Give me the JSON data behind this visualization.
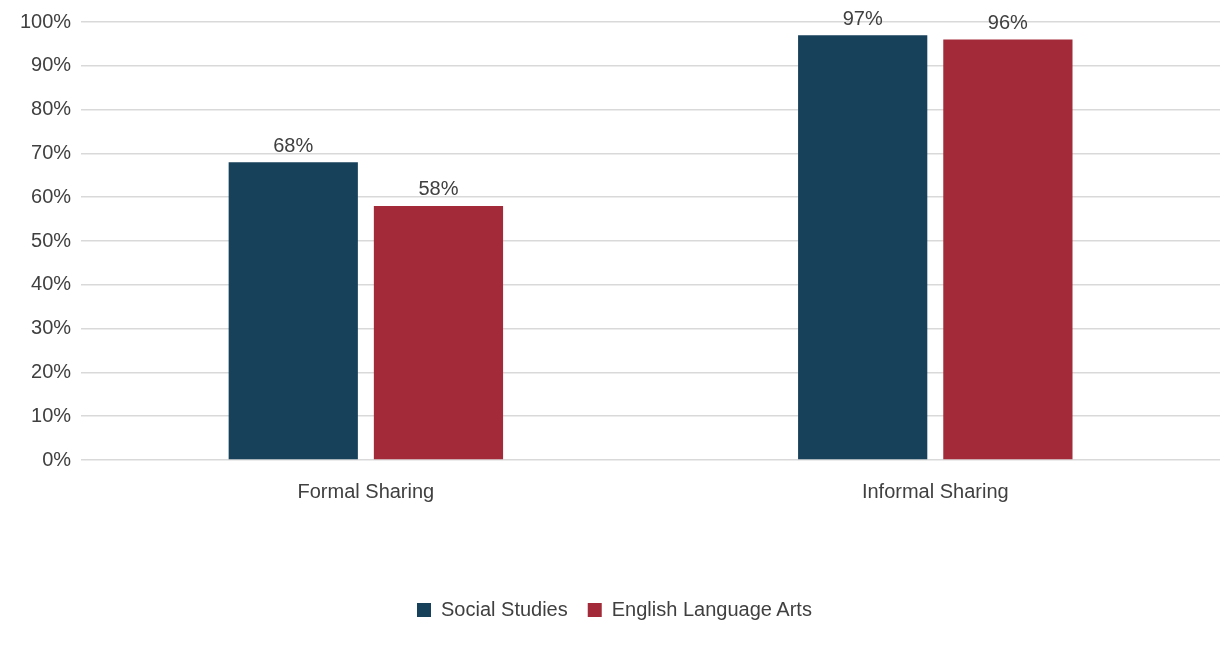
{
  "chart_data": {
    "type": "bar",
    "categories": [
      "Formal Sharing",
      "Informal Sharing"
    ],
    "series": [
      {
        "name": "Social Studies",
        "color": "#17415a",
        "values": [
          68,
          97
        ],
        "value_labels": [
          "68%",
          "97%"
        ]
      },
      {
        "name": "English Language Arts",
        "color": "#a32a38",
        "values": [
          58,
          96
        ],
        "value_labels": [
          "58%",
          "96%"
        ]
      }
    ],
    "ylim": [
      0,
      100
    ],
    "yticks": [
      {
        "value": 0,
        "label": "0%"
      },
      {
        "value": 10,
        "label": "10%"
      },
      {
        "value": 20,
        "label": "20%"
      },
      {
        "value": 30,
        "label": "30%"
      },
      {
        "value": 40,
        "label": "40%"
      },
      {
        "value": 50,
        "label": "50%"
      },
      {
        "value": 60,
        "label": "60%"
      },
      {
        "value": 70,
        "label": "70%"
      },
      {
        "value": 80,
        "label": "80%"
      },
      {
        "value": 90,
        "label": "90%"
      },
      {
        "value": 100,
        "label": "100%"
      }
    ],
    "grid": "y",
    "legend": "bottom"
  }
}
